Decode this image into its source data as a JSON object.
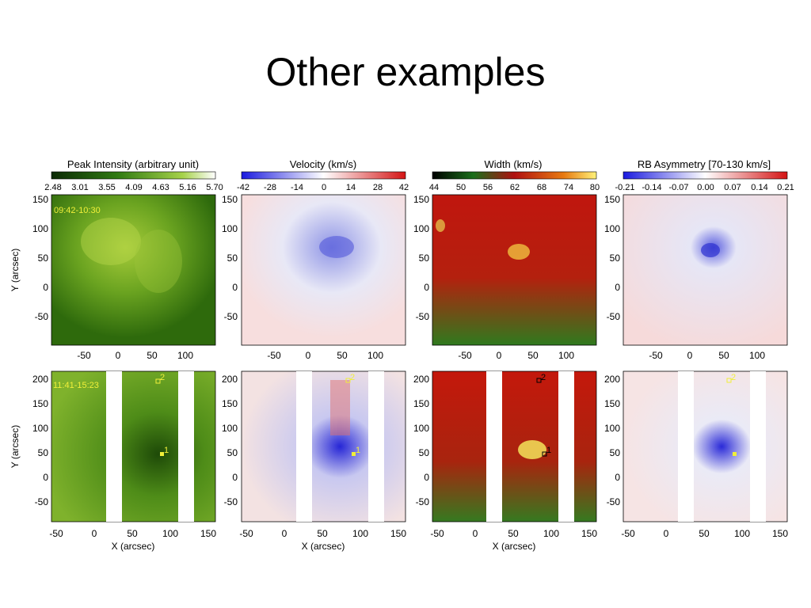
{
  "slide": {
    "title": "Other examples"
  },
  "figure": {
    "colorbars": [
      {
        "title": "Peak Intensity (arbitrary unit)",
        "ticks": [
          "2.48",
          "3.01",
          "3.55",
          "4.09",
          "4.63",
          "5.16",
          "5.70"
        ],
        "colormap": "green"
      },
      {
        "title": "Velocity (km/s)",
        "ticks": [
          "-42",
          "-28",
          "-14",
          "0",
          "14",
          "28",
          "42"
        ],
        "colormap": "blue-white-red"
      },
      {
        "title": "Width (km/s)",
        "ticks": [
          "44",
          "50",
          "56",
          "62",
          "68",
          "74",
          "80"
        ],
        "colormap": "black-red-yellow"
      },
      {
        "title": "RB Asymmetry [70-130 km/s]",
        "ticks": [
          "-0.21",
          "-0.14",
          "-0.07",
          "0.00",
          "0.07",
          "0.14",
          "0.21"
        ],
        "colormap": "blue-white-red"
      }
    ],
    "row1": {
      "time_label": "09:42-10:30",
      "y_ticks": [
        "150",
        "100",
        "50",
        "0",
        "-50"
      ],
      "x_ticks": [
        "-50",
        "0",
        "50",
        "100"
      ],
      "y_label": "Y (arcsec)"
    },
    "row2": {
      "time_label": "11:41-15:23",
      "y_ticks": [
        "200",
        "150",
        "100",
        "50",
        "0",
        "-50"
      ],
      "x_ticks": [
        "-50",
        "0",
        "50",
        "100",
        "150"
      ],
      "y_label": "Y (arcsec)",
      "x_label": "X (arcsec)",
      "markers": [
        "1",
        "2"
      ]
    }
  }
}
